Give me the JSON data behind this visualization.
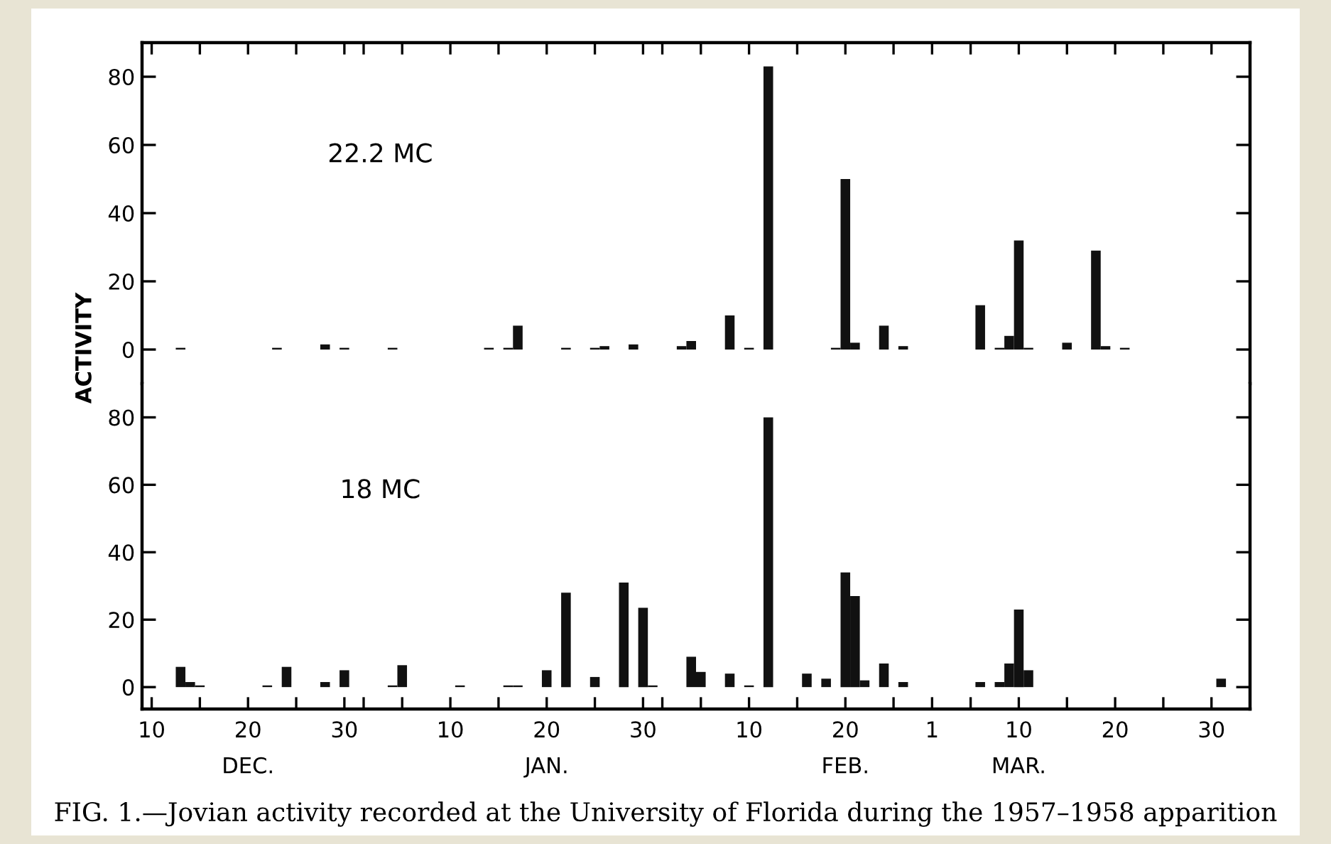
{
  "chart_data": [
    {
      "type": "bar",
      "title": "22.2 MC",
      "ylabel": "ACTIVITY",
      "color": "#111111",
      "tick_labels": "y",
      "x": [
        "1957-12-13",
        "1957-12-23",
        "1957-12-28",
        "1957-12-30",
        "1958-01-04",
        "1958-01-14",
        "1958-01-16",
        "1958-01-17",
        "1958-01-22",
        "1958-01-25",
        "1958-01-26",
        "1958-01-29",
        "1958-02-03",
        "1958-02-04",
        "1958-02-08",
        "1958-02-10",
        "1958-02-12",
        "1958-02-19",
        "1958-02-20",
        "1958-02-21",
        "1958-02-24",
        "1958-02-26",
        "1958-03-06",
        "1958-03-08",
        "1958-03-09",
        "1958-03-10",
        "1958-03-11",
        "1958-03-15",
        "1958-03-18",
        "1958-03-19",
        "1958-03-21"
      ],
      "values": [
        0.5,
        0.5,
        1.5,
        0.5,
        0.5,
        0.5,
        0.5,
        7,
        0.5,
        0.5,
        1,
        1.5,
        1,
        2.5,
        10,
        0.5,
        83,
        0.5,
        50,
        2,
        7,
        1,
        13,
        0.5,
        4,
        32,
        0.5,
        2,
        29,
        1,
        0.5
      ],
      "xlim": [
        "1957-12-09",
        "1958-04-03"
      ],
      "xticks": [
        {
          "value": "1957-12-10",
          "label": null
        },
        {
          "value": "1957-12-15",
          "label": null
        },
        {
          "value": "1957-12-20",
          "label": null
        },
        {
          "value": "1957-12-25",
          "label": null
        },
        {
          "value": "1957-12-30",
          "label": null
        },
        {
          "value": "1958-01-01",
          "label": null
        },
        {
          "value": "1958-01-05",
          "label": null
        },
        {
          "value": "1958-01-10",
          "label": null
        },
        {
          "value": "1958-01-15",
          "label": null
        },
        {
          "value": "1958-01-20",
          "label": null
        },
        {
          "value": "1958-01-25",
          "label": null
        },
        {
          "value": "1958-01-30",
          "label": null
        },
        {
          "value": "1958-02-01",
          "label": null
        },
        {
          "value": "1958-02-05",
          "label": null
        },
        {
          "value": "1958-02-10",
          "label": null
        },
        {
          "value": "1958-02-15",
          "label": null
        },
        {
          "value": "1958-02-20",
          "label": null
        },
        {
          "value": "1958-02-25",
          "label": null
        },
        {
          "value": "1958-03-01",
          "label": null
        },
        {
          "value": "1958-03-05",
          "label": null
        },
        {
          "value": "1958-03-10",
          "label": null
        },
        {
          "value": "1958-03-15",
          "label": null
        },
        {
          "value": "1958-03-20",
          "label": null
        },
        {
          "value": "1958-03-25",
          "label": null
        },
        {
          "value": "1958-03-30",
          "label": null
        }
      ],
      "ylim": [
        -10,
        90
      ],
      "yticks": [
        0,
        20,
        40,
        60,
        80
      ],
      "grid": false,
      "legend": false
    },
    {
      "type": "bar",
      "title": "18 MC",
      "color": "#111111",
      "x": [
        "1957-12-13",
        "1957-12-14",
        "1957-12-15",
        "1957-12-22",
        "1957-12-24",
        "1957-12-28",
        "1957-12-30",
        "1958-01-04",
        "1958-01-05",
        "1958-01-11",
        "1958-01-16",
        "1958-01-17",
        "1958-01-20",
        "1958-01-22",
        "1958-01-25",
        "1958-01-28",
        "1958-01-30",
        "1958-01-31",
        "1958-02-04",
        "1958-02-05",
        "1958-02-08",
        "1958-02-10",
        "1958-02-12",
        "1958-02-16",
        "1958-02-18",
        "1958-02-20",
        "1958-02-21",
        "1958-02-22",
        "1958-02-24",
        "1958-02-26",
        "1958-03-06",
        "1958-03-08",
        "1958-03-09",
        "1958-03-10",
        "1958-03-11",
        "1958-03-31"
      ],
      "values": [
        6,
        1.5,
        0.5,
        0.5,
        6,
        1.5,
        5,
        0.5,
        6.5,
        0.5,
        0.5,
        0.5,
        5,
        28,
        3,
        31,
        23.5,
        0.5,
        9,
        4.5,
        4,
        0.5,
        80,
        4,
        2.5,
        34,
        27,
        2,
        7,
        1.5,
        1.5,
        1.5,
        7,
        23,
        5,
        2.5
      ],
      "xlim": [
        "1957-12-09",
        "1958-04-03"
      ],
      "xticks": [
        {
          "value": "1957-12-10",
          "label": "10"
        },
        {
          "value": "1957-12-15",
          "label": null
        },
        {
          "value": "1957-12-20",
          "label": "20\nDEC."
        },
        {
          "value": "1957-12-25",
          "label": null
        },
        {
          "value": "1957-12-30",
          "label": "30"
        },
        {
          "value": "1958-01-01",
          "label": null
        },
        {
          "value": "1958-01-05",
          "label": null
        },
        {
          "value": "1958-01-10",
          "label": "10"
        },
        {
          "value": "1958-01-15",
          "label": null
        },
        {
          "value": "1958-01-20",
          "label": "20\nJAN."
        },
        {
          "value": "1958-01-25",
          "label": null
        },
        {
          "value": "1958-01-30",
          "label": "30"
        },
        {
          "value": "1958-02-01",
          "label": null
        },
        {
          "value": "1958-02-05",
          "label": null
        },
        {
          "value": "1958-02-10",
          "label": "10"
        },
        {
          "value": "1958-02-15",
          "label": null
        },
        {
          "value": "1958-02-20",
          "label": "20\nFEB."
        },
        {
          "value": "1958-02-25",
          "label": null
        },
        {
          "value": "1958-03-01",
          "label": "1"
        },
        {
          "value": "1958-03-05",
          "label": null
        },
        {
          "value": "1958-03-10",
          "label": "10\nMAR."
        },
        {
          "value": "1958-03-15",
          "label": null
        },
        {
          "value": "1958-03-20",
          "label": "20"
        },
        {
          "value": "1958-03-25",
          "label": null
        },
        {
          "value": "1958-03-30",
          "label": "30"
        }
      ],
      "ylim": [
        -6.5,
        90
      ],
      "yticks": [
        0,
        20,
        40,
        60,
        80
      ],
      "grid": false,
      "legend": false,
      "annotations": [
        "FIG. 1.—Jovian activity recorded at the University of Florida during the 1957–1958 apparition"
      ]
    }
  ]
}
